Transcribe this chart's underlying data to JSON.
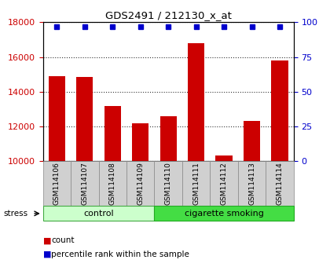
{
  "title": "GDS2491 / 212130_x_at",
  "samples": [
    "GSM114106",
    "GSM114107",
    "GSM114108",
    "GSM114109",
    "GSM114110",
    "GSM114111",
    "GSM114112",
    "GSM114113",
    "GSM114114"
  ],
  "counts": [
    14900,
    14850,
    13200,
    12200,
    12600,
    16800,
    10350,
    12300,
    15800
  ],
  "percentiles": [
    100,
    100,
    100,
    100,
    100,
    100,
    100,
    100,
    100
  ],
  "control_count": 4,
  "bar_color": "#cc0000",
  "percentile_color": "#0000cc",
  "ylim_left": [
    10000,
    18000
  ],
  "ylim_right": [
    0,
    100
  ],
  "yticks_left": [
    10000,
    12000,
    14000,
    16000,
    18000
  ],
  "yticks_right": [
    0,
    25,
    50,
    75,
    100
  ],
  "label_color_left": "#cc0000",
  "label_color_right": "#0000cc",
  "control_color_light": "#ccffcc",
  "control_color_edge": "#44aa44",
  "cig_color": "#44dd44",
  "cig_color_edge": "#22aa22",
  "gray_box_color": "#d0d0d0",
  "gray_box_edge": "#888888",
  "stress_label": "stress",
  "group_label_control": "control",
  "group_label_cig": "cigarette smoking",
  "legend_count": "count",
  "legend_percentile": "percentile rank within the sample"
}
